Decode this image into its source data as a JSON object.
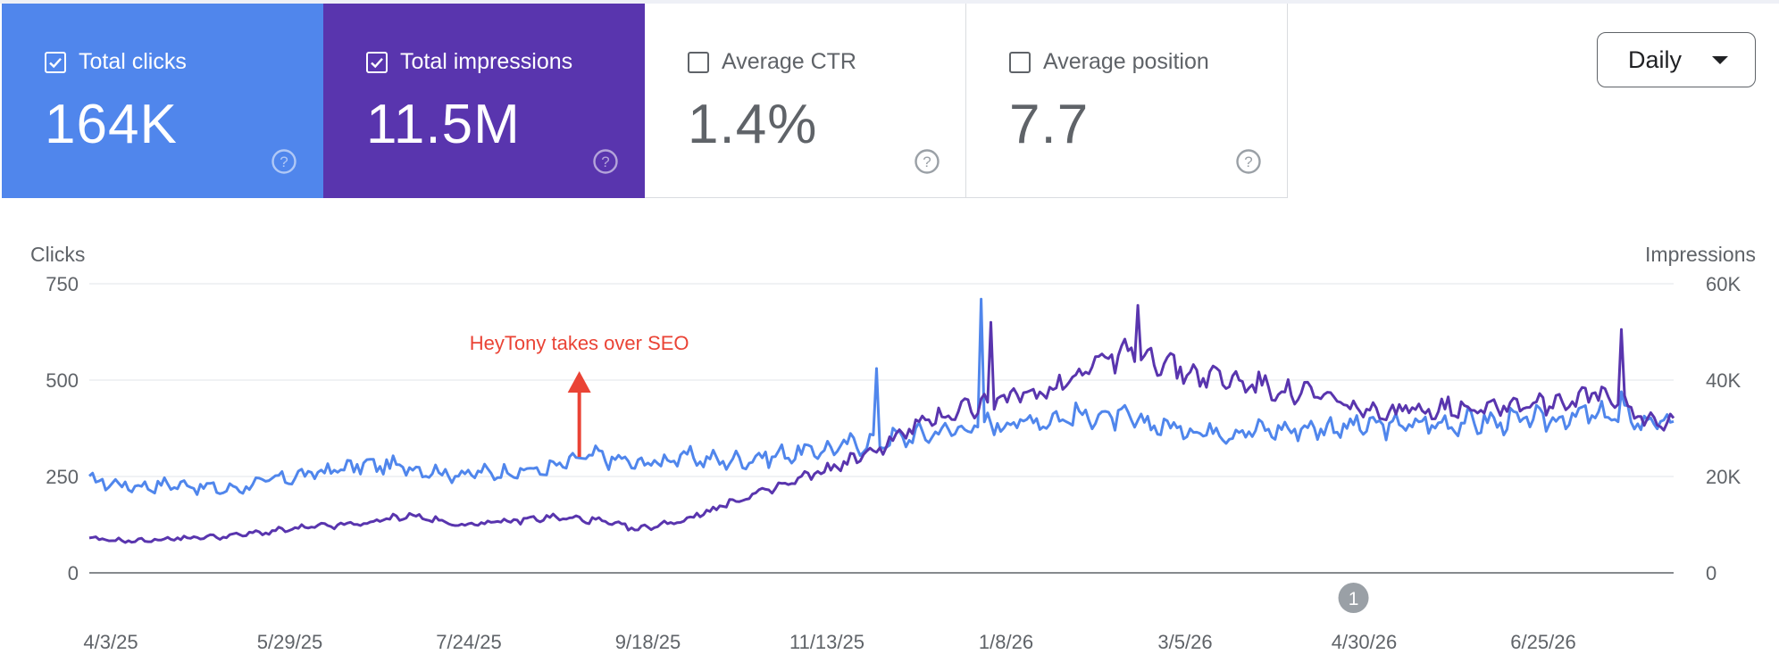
{
  "cards": [
    {
      "label": "Total clicks",
      "value": "164K",
      "selected": true,
      "color": "#5086ec"
    },
    {
      "label": "Total impressions",
      "value": "11.5M",
      "selected": true,
      "color": "#5935ae"
    },
    {
      "label": "Average CTR",
      "value": "1.4%",
      "selected": false,
      "color": "#ffffff"
    },
    {
      "label": "Average position",
      "value": "7.7",
      "selected": false,
      "color": "#ffffff"
    }
  ],
  "period_select": {
    "value": "Daily"
  },
  "colors": {
    "clicks": "#5086ec",
    "impressions": "#5935ae",
    "annotation": "#ea4335",
    "grid": "#e8eaed",
    "axis": "#5f6368"
  },
  "chart_data": {
    "type": "line",
    "y_left": {
      "label": "Clicks",
      "ticks": [
        "0",
        "250",
        "500",
        "750"
      ],
      "range": [
        0,
        750
      ]
    },
    "y_right": {
      "label": "Impressions",
      "ticks": [
        "0",
        "20K",
        "40K",
        "60K"
      ],
      "range": [
        0,
        60000
      ]
    },
    "x_ticks": [
      "4/3/25",
      "5/29/25",
      "7/24/25",
      "9/18/25",
      "11/13/25",
      "1/8/26",
      "3/5/26",
      "4/30/26",
      "6/25/26"
    ],
    "x_range": [
      "2025-04-03",
      "2026-08-01"
    ],
    "grid": true,
    "series": [
      {
        "name": "Total clicks",
        "axis": "left",
        "points": [
          [
            "2025-04-03",
            240
          ],
          [
            "2025-04-17",
            225
          ],
          [
            "2025-05-01",
            230
          ],
          [
            "2025-05-15",
            215
          ],
          [
            "2025-05-29",
            240
          ],
          [
            "2025-06-12",
            260
          ],
          [
            "2025-06-26",
            280
          ],
          [
            "2025-07-10",
            275
          ],
          [
            "2025-07-24",
            255
          ],
          [
            "2025-08-07",
            262
          ],
          [
            "2025-08-21",
            268
          ],
          [
            "2025-09-04",
            305
          ],
          [
            "2025-09-18",
            282
          ],
          [
            "2025-10-02",
            300
          ],
          [
            "2025-10-16",
            290
          ],
          [
            "2025-10-30",
            305
          ],
          [
            "2025-11-13",
            318
          ],
          [
            "2025-11-27",
            340
          ],
          [
            "2025-12-11",
            355
          ],
          [
            "2025-12-25",
            375
          ],
          [
            "2026-01-08",
            390
          ],
          [
            "2026-01-22",
            400
          ],
          [
            "2026-02-05",
            410
          ],
          [
            "2026-02-19",
            390
          ],
          [
            "2026-03-05",
            372
          ],
          [
            "2026-03-19",
            368
          ],
          [
            "2026-04-02",
            372
          ],
          [
            "2026-04-16",
            378
          ],
          [
            "2026-04-30",
            380
          ],
          [
            "2026-05-14",
            385
          ],
          [
            "2026-05-28",
            390
          ],
          [
            "2026-06-11",
            392
          ],
          [
            "2026-06-25",
            400
          ],
          [
            "2026-07-09",
            410
          ],
          [
            "2026-07-23",
            395
          ],
          [
            "2026-08-01",
            388
          ]
        ],
        "spikes": [
          [
            "2025-11-30",
            530
          ],
          [
            "2026-01-01",
            710
          ],
          [
            "2026-07-16",
            470
          ]
        ]
      },
      {
        "name": "Total impressions",
        "axis": "right",
        "points": [
          [
            "2025-04-03",
            7000
          ],
          [
            "2025-04-17",
            6600
          ],
          [
            "2025-05-01",
            7200
          ],
          [
            "2025-05-15",
            7600
          ],
          [
            "2025-05-29",
            8600
          ],
          [
            "2025-06-12",
            9600
          ],
          [
            "2025-06-26",
            10200
          ],
          [
            "2025-07-10",
            12000
          ],
          [
            "2025-07-24",
            10000
          ],
          [
            "2025-08-07",
            10500
          ],
          [
            "2025-08-21",
            11500
          ],
          [
            "2025-09-04",
            11000
          ],
          [
            "2025-09-18",
            9000
          ],
          [
            "2025-10-02",
            11000
          ],
          [
            "2025-10-16",
            14500
          ],
          [
            "2025-10-30",
            17500
          ],
          [
            "2025-11-13",
            21000
          ],
          [
            "2025-11-27",
            24500
          ],
          [
            "2025-12-11",
            30000
          ],
          [
            "2025-12-25",
            34000
          ],
          [
            "2026-01-08",
            36000
          ],
          [
            "2026-01-22",
            38000
          ],
          [
            "2026-02-05",
            44000
          ],
          [
            "2026-02-19",
            46000
          ],
          [
            "2026-03-05",
            41500
          ],
          [
            "2026-03-19",
            40000
          ],
          [
            "2026-04-02",
            38000
          ],
          [
            "2026-04-16",
            36500
          ],
          [
            "2026-04-30",
            33000
          ],
          [
            "2026-05-14",
            34000
          ],
          [
            "2026-05-28",
            34500
          ],
          [
            "2026-06-11",
            35000
          ],
          [
            "2026-06-25",
            35500
          ],
          [
            "2026-07-09",
            37000
          ],
          [
            "2026-07-23",
            32000
          ],
          [
            "2026-08-01",
            31000
          ]
        ],
        "spikes": [
          [
            "2026-01-04",
            52000
          ],
          [
            "2026-02-18",
            55500
          ],
          [
            "2026-07-16",
            50500
          ]
        ]
      }
    ],
    "annotations": [
      {
        "text": "HeyTony takes over SEO",
        "date": "2025-08-31"
      },
      {
        "text": "1",
        "date": "2026-04-25"
      }
    ]
  }
}
